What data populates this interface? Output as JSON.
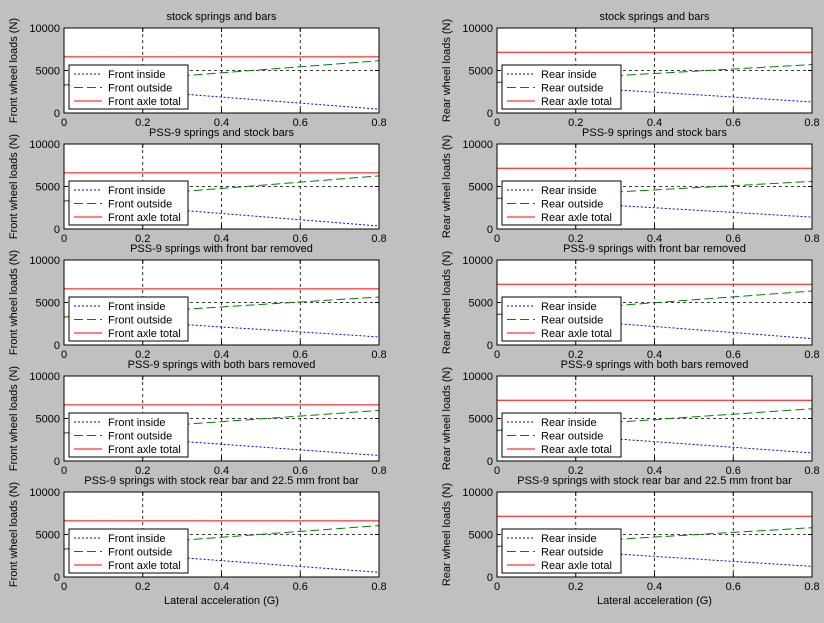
{
  "figure": {
    "background": "#c0c0c0"
  },
  "chart_data": [
    {
      "type": "line",
      "title": "stock springs and bars",
      "ylabel": "Front wheel loads (N)",
      "xlabel": "",
      "xlim": [
        0,
        0.8
      ],
      "ylim": [
        0,
        10000
      ],
      "xticks": [
        "0",
        "0.2",
        "0.4",
        "0.6",
        "0.8"
      ],
      "yticks": [
        "0",
        "5000",
        "10000"
      ],
      "grid": true,
      "legend": "lower-left",
      "series": [
        {
          "name": "Front inside",
          "color": "#0000ff",
          "style": "dotted",
          "x": [
            0,
            0.8
          ],
          "y": [
            3300,
            450
          ]
        },
        {
          "name": "Front outside",
          "color": "#008000",
          "style": "dashed",
          "x": [
            0,
            0.8
          ],
          "y": [
            3300,
            6150
          ]
        },
        {
          "name": "Front axle total",
          "color": "#ff0000",
          "style": "solid",
          "x": [
            0,
            0.8
          ],
          "y": [
            6600,
            6600
          ]
        }
      ]
    },
    {
      "type": "line",
      "title": "stock springs and bars",
      "ylabel": "Rear wheel loads (N)",
      "xlabel": "",
      "xlim": [
        0,
        0.8
      ],
      "ylim": [
        0,
        10000
      ],
      "xticks": [
        "0",
        "0.2",
        "0.4",
        "0.6",
        "0.8"
      ],
      "yticks": [
        "0",
        "5000",
        "10000"
      ],
      "grid": true,
      "legend": "lower-left",
      "series": [
        {
          "name": "Rear inside",
          "color": "#0000ff",
          "style": "dotted",
          "x": [
            0,
            0.8
          ],
          "y": [
            3600,
            1300
          ]
        },
        {
          "name": "Rear outside",
          "color": "#008000",
          "style": "dashed",
          "x": [
            0,
            0.8
          ],
          "y": [
            3600,
            5700
          ]
        },
        {
          "name": "Rear axle total",
          "color": "#ff0000",
          "style": "solid",
          "x": [
            0,
            0.8
          ],
          "y": [
            7150,
            7150
          ]
        }
      ]
    },
    {
      "type": "line",
      "title": "PSS-9 springs and stock bars",
      "ylabel": "Front wheel loads (N)",
      "xlabel": "",
      "xlim": [
        0,
        0.8
      ],
      "ylim": [
        0,
        10000
      ],
      "xticks": [
        "0",
        "0.2",
        "0.4",
        "0.6",
        "0.8"
      ],
      "yticks": [
        "0",
        "5000",
        "10000"
      ],
      "grid": true,
      "legend": "lower-left",
      "series": [
        {
          "name": "Front inside",
          "color": "#0000ff",
          "style": "dotted",
          "x": [
            0,
            0.8
          ],
          "y": [
            3300,
            350
          ]
        },
        {
          "name": "Front outside",
          "color": "#008000",
          "style": "dashed",
          "x": [
            0,
            0.8
          ],
          "y": [
            3300,
            6250
          ]
        },
        {
          "name": "Front axle total",
          "color": "#ff0000",
          "style": "solid",
          "x": [
            0,
            0.8
          ],
          "y": [
            6600,
            6600
          ]
        }
      ]
    },
    {
      "type": "line",
      "title": "PSS-9 springs and stock bars",
      "ylabel": "Rear wheel loads (N)",
      "xlabel": "",
      "xlim": [
        0,
        0.8
      ],
      "ylim": [
        0,
        10000
      ],
      "xticks": [
        "0",
        "0.2",
        "0.4",
        "0.6",
        "0.8"
      ],
      "yticks": [
        "0",
        "5000",
        "10000"
      ],
      "grid": true,
      "legend": "lower-left",
      "series": [
        {
          "name": "Rear inside",
          "color": "#0000ff",
          "style": "dotted",
          "x": [
            0,
            0.8
          ],
          "y": [
            3600,
            1400
          ]
        },
        {
          "name": "Rear outside",
          "color": "#008000",
          "style": "dashed",
          "x": [
            0,
            0.8
          ],
          "y": [
            3600,
            5600
          ]
        },
        {
          "name": "Rear axle total",
          "color": "#ff0000",
          "style": "solid",
          "x": [
            0,
            0.8
          ],
          "y": [
            7150,
            7150
          ]
        }
      ]
    },
    {
      "type": "line",
      "title": "PSS-9 springs with front bar removed",
      "ylabel": "Front wheel loads (N)",
      "xlabel": "",
      "xlim": [
        0,
        0.8
      ],
      "ylim": [
        0,
        10000
      ],
      "xticks": [
        "0",
        "0.2",
        "0.4",
        "0.6",
        "0.8"
      ],
      "yticks": [
        "0",
        "5000",
        "10000"
      ],
      "grid": true,
      "legend": "lower-left",
      "series": [
        {
          "name": "Front inside",
          "color": "#0000ff",
          "style": "dotted",
          "x": [
            0,
            0.8
          ],
          "y": [
            3300,
            950
          ]
        },
        {
          "name": "Front outside",
          "color": "#008000",
          "style": "dashed",
          "x": [
            0,
            0.8
          ],
          "y": [
            3300,
            5650
          ]
        },
        {
          "name": "Front axle total",
          "color": "#ff0000",
          "style": "solid",
          "x": [
            0,
            0.8
          ],
          "y": [
            6600,
            6600
          ]
        }
      ]
    },
    {
      "type": "line",
      "title": "PSS-9 springs with front bar removed",
      "ylabel": "Rear wheel loads (N)",
      "xlabel": "",
      "xlim": [
        0,
        0.8
      ],
      "ylim": [
        0,
        10000
      ],
      "xticks": [
        "0",
        "0.2",
        "0.4",
        "0.6",
        "0.8"
      ],
      "yticks": [
        "0",
        "5000",
        "10000"
      ],
      "grid": true,
      "legend": "lower-left",
      "series": [
        {
          "name": "Rear inside",
          "color": "#0000ff",
          "style": "dotted",
          "x": [
            0,
            0.8
          ],
          "y": [
            3600,
            750
          ]
        },
        {
          "name": "Rear outside",
          "color": "#008000",
          "style": "dashed",
          "x": [
            0,
            0.8
          ],
          "y": [
            3600,
            6350
          ]
        },
        {
          "name": "Rear axle total",
          "color": "#ff0000",
          "style": "solid",
          "x": [
            0,
            0.8
          ],
          "y": [
            7150,
            7150
          ]
        }
      ]
    },
    {
      "type": "line",
      "title": "PSS-9 springs with both bars removed",
      "ylabel": "Front wheel loads (N)",
      "xlabel": "",
      "xlim": [
        0,
        0.8
      ],
      "ylim": [
        0,
        10000
      ],
      "xticks": [
        "0",
        "0.2",
        "0.4",
        "0.6",
        "0.8"
      ],
      "yticks": [
        "0",
        "5000",
        "10000"
      ],
      "grid": true,
      "legend": "lower-left",
      "series": [
        {
          "name": "Front inside",
          "color": "#0000ff",
          "style": "dotted",
          "x": [
            0,
            0.8
          ],
          "y": [
            3300,
            650
          ]
        },
        {
          "name": "Front outside",
          "color": "#008000",
          "style": "dashed",
          "x": [
            0,
            0.8
          ],
          "y": [
            3300,
            5950
          ]
        },
        {
          "name": "Front axle total",
          "color": "#ff0000",
          "style": "solid",
          "x": [
            0,
            0.8
          ],
          "y": [
            6600,
            6600
          ]
        }
      ]
    },
    {
      "type": "line",
      "title": "PSS-9 springs with both bars removed",
      "ylabel": "Rear wheel loads (N)",
      "xlabel": "",
      "xlim": [
        0,
        0.8
      ],
      "ylim": [
        0,
        10000
      ],
      "xticks": [
        "0",
        "0.2",
        "0.4",
        "0.6",
        "0.8"
      ],
      "yticks": [
        "0",
        "5000",
        "10000"
      ],
      "grid": true,
      "legend": "lower-left",
      "series": [
        {
          "name": "Rear inside",
          "color": "#0000ff",
          "style": "dotted",
          "x": [
            0,
            0.8
          ],
          "y": [
            3600,
            950
          ]
        },
        {
          "name": "Rear outside",
          "color": "#008000",
          "style": "dashed",
          "x": [
            0,
            0.8
          ],
          "y": [
            3600,
            6150
          ]
        },
        {
          "name": "Rear axle total",
          "color": "#ff0000",
          "style": "solid",
          "x": [
            0,
            0.8
          ],
          "y": [
            7150,
            7150
          ]
        }
      ]
    },
    {
      "type": "line",
      "title": "PSS-9 springs with stock rear bar and 22.5 mm front bar",
      "ylabel": "Front wheel loads (N)",
      "xlabel": "Lateral acceleration (G)",
      "xlim": [
        0,
        0.8
      ],
      "ylim": [
        0,
        10000
      ],
      "xticks": [
        "0",
        "0.2",
        "0.4",
        "0.6",
        "0.8"
      ],
      "yticks": [
        "0",
        "5000",
        "10000"
      ],
      "grid": true,
      "legend": "lower-left",
      "series": [
        {
          "name": "Front inside",
          "color": "#0000ff",
          "style": "dotted",
          "x": [
            0,
            0.8
          ],
          "y": [
            3300,
            550
          ]
        },
        {
          "name": "Front outside",
          "color": "#008000",
          "style": "dashed",
          "x": [
            0,
            0.8
          ],
          "y": [
            3300,
            6050
          ]
        },
        {
          "name": "Front axle total",
          "color": "#ff0000",
          "style": "solid",
          "x": [
            0,
            0.8
          ],
          "y": [
            6600,
            6600
          ]
        }
      ]
    },
    {
      "type": "line",
      "title": "PSS-9 springs with stock rear bar and 22.5 mm front bar",
      "ylabel": "Rear wheel loads (N)",
      "xlabel": "Lateral acceleration (G)",
      "xlim": [
        0,
        0.8
      ],
      "ylim": [
        0,
        10000
      ],
      "xticks": [
        "0",
        "0.2",
        "0.4",
        "0.6",
        "0.8"
      ],
      "yticks": [
        "0",
        "5000",
        "10000"
      ],
      "grid": true,
      "legend": "lower-left",
      "series": [
        {
          "name": "Rear inside",
          "color": "#0000ff",
          "style": "dotted",
          "x": [
            0,
            0.8
          ],
          "y": [
            3600,
            1250
          ]
        },
        {
          "name": "Rear outside",
          "color": "#008000",
          "style": "dashed",
          "x": [
            0,
            0.8
          ],
          "y": [
            3600,
            5800
          ]
        },
        {
          "name": "Rear axle total",
          "color": "#ff0000",
          "style": "solid",
          "x": [
            0,
            0.8
          ],
          "y": [
            7150,
            7150
          ]
        }
      ]
    }
  ]
}
